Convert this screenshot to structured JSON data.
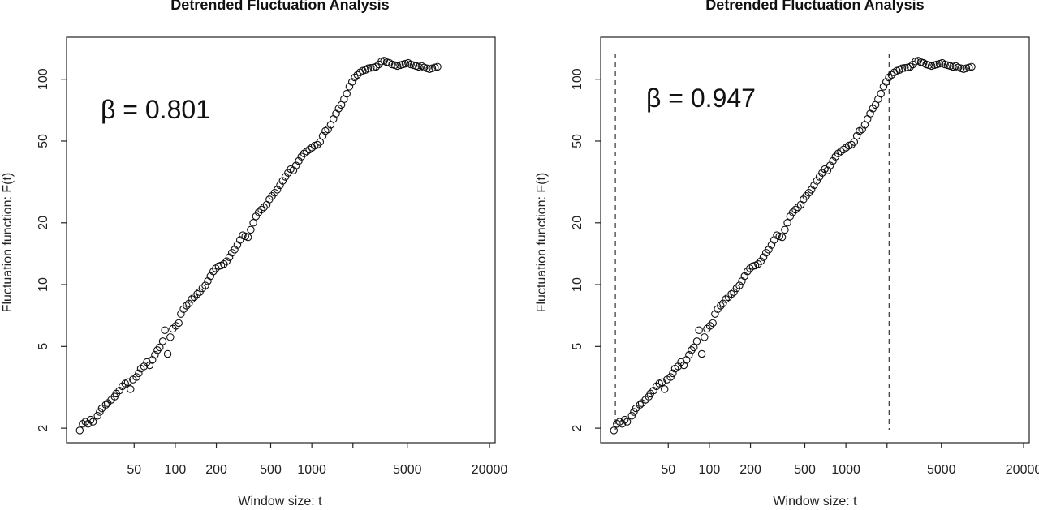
{
  "chart_data": [
    {
      "type": "scatter",
      "title": "Detrended Fluctuation Analysis",
      "xlabel": "Window size: t",
      "ylabel": "Fluctuation function: F(t)",
      "xscale": "log",
      "yscale": "log",
      "xlim": [
        16,
        22000
      ],
      "ylim": [
        1.7,
        160
      ],
      "xticks": [
        50,
        100,
        200,
        500,
        1000,
        5000,
        20000
      ],
      "xtick_labels": [
        "50",
        "100",
        "200",
        "500",
        "1000",
        "5000",
        "20000"
      ],
      "minor_xticks": [
        2000
      ],
      "yticks": [
        2,
        5,
        10,
        20,
        50,
        100
      ],
      "ytick_labels": [
        "2",
        "5",
        "10",
        "20",
        "50",
        "100"
      ],
      "annotation": "β = 0.801",
      "vlines": [],
      "x": [
        20,
        21,
        22,
        23,
        24,
        25,
        27,
        28,
        29,
        31,
        32,
        34,
        36,
        37,
        39,
        41,
        43,
        45,
        47,
        49,
        52,
        54,
        56,
        59,
        62,
        65,
        68,
        71,
        74,
        77,
        81,
        84,
        88,
        92,
        96,
        101,
        106,
        110,
        115,
        121,
        126,
        132,
        138,
        145,
        151,
        158,
        166,
        173,
        181,
        190,
        198,
        208,
        217,
        227,
        238,
        249,
        260,
        272,
        285,
        298,
        312,
        326,
        341,
        357,
        373,
        390,
        408,
        427,
        446,
        467,
        489,
        511,
        535,
        559,
        585,
        612,
        640,
        670,
        700,
        733,
        766,
        802,
        839,
        877,
        918,
        960,
        1004,
        1050,
        1098,
        1149,
        1202,
        1257,
        1315,
        1375,
        1439,
        1505,
        1574,
        1647,
        1722,
        1802,
        1884,
        1971,
        2062,
        2157,
        2256,
        2360,
        2469,
        2582,
        2701,
        2826,
        2956,
        3092,
        3234,
        3383,
        3539,
        3702,
        3872,
        4051,
        4237,
        4432,
        4636,
        4850,
        5073,
        5307,
        5551,
        5807,
        6074,
        6354,
        6647,
        6953,
        7273,
        7608,
        7958,
        8325
      ],
      "y": [
        1.95,
        2.1,
        2.15,
        2.1,
        2.2,
        2.15,
        2.3,
        2.4,
        2.5,
        2.6,
        2.65,
        2.75,
        2.85,
        2.95,
        3.05,
        3.2,
        3.3,
        3.35,
        3.1,
        3.45,
        3.55,
        3.7,
        3.9,
        4.0,
        4.2,
        4.05,
        4.3,
        4.55,
        4.8,
        4.95,
        5.3,
        6.0,
        4.6,
        5.55,
        6.1,
        6.3,
        6.5,
        7.2,
        7.6,
        7.9,
        8.1,
        8.5,
        8.7,
        9.0,
        9.2,
        9.6,
        9.9,
        10.4,
        11.0,
        11.6,
        12.0,
        12.3,
        12.4,
        12.6,
        13.0,
        13.6,
        14.3,
        14.8,
        15.6,
        16.5,
        17.4,
        17.2,
        17.0,
        18.5,
        20.0,
        21.5,
        22.5,
        23.2,
        23.8,
        24.5,
        26.0,
        27.0,
        28.0,
        29.0,
        30.5,
        32.0,
        33.5,
        35.0,
        36.5,
        36.0,
        38.0,
        40.0,
        42.0,
        43.5,
        44.5,
        45.5,
        46.5,
        47.5,
        48.0,
        49.5,
        53.0,
        56.0,
        57.0,
        60.0,
        64.0,
        68.0,
        72.0,
        75.0,
        80.0,
        85.0,
        92.0,
        97.0,
        102.0,
        105.0,
        108.0,
        110.0,
        111.0,
        113.0,
        113.5,
        114.0,
        115.0,
        118.0,
        122.0,
        123.0,
        121.0,
        120.0,
        118.0,
        117.0,
        116.0,
        117.0,
        118.0,
        119.0,
        120.0,
        118.0,
        117.0,
        116.0,
        115.0,
        116.0,
        114.0,
        113.0,
        112.0,
        113.0,
        114.0,
        115.0
      ]
    },
    {
      "type": "scatter",
      "title": "Detrended Fluctuation Analysis",
      "xlabel": "Window size: t",
      "ylabel": "Fluctuation function: F(t)",
      "xscale": "log",
      "yscale": "log",
      "xlim": [
        16,
        22000
      ],
      "ylim": [
        1.7,
        160
      ],
      "xticks": [
        50,
        100,
        200,
        500,
        1000,
        5000,
        20000
      ],
      "xtick_labels": [
        "50",
        "100",
        "200",
        "500",
        "1000",
        "5000",
        "20000"
      ],
      "minor_xticks": [
        2000
      ],
      "yticks": [
        2,
        5,
        10,
        20,
        50,
        100
      ],
      "ytick_labels": [
        "2",
        "5",
        "10",
        "20",
        "50",
        "100"
      ],
      "annotation": "β = 0.947",
      "vlines": [
        20.5,
        2070
      ],
      "x": [
        20,
        21,
        22,
        23,
        24,
        25,
        27,
        28,
        29,
        31,
        32,
        34,
        36,
        37,
        39,
        41,
        43,
        45,
        47,
        49,
        52,
        54,
        56,
        59,
        62,
        65,
        68,
        71,
        74,
        77,
        81,
        84,
        88,
        92,
        96,
        101,
        106,
        110,
        115,
        121,
        126,
        132,
        138,
        145,
        151,
        158,
        166,
        173,
        181,
        190,
        198,
        208,
        217,
        227,
        238,
        249,
        260,
        272,
        285,
        298,
        312,
        326,
        341,
        357,
        373,
        390,
        408,
        427,
        446,
        467,
        489,
        511,
        535,
        559,
        585,
        612,
        640,
        670,
        700,
        733,
        766,
        802,
        839,
        877,
        918,
        960,
        1004,
        1050,
        1098,
        1149,
        1202,
        1257,
        1315,
        1375,
        1439,
        1505,
        1574,
        1647,
        1722,
        1802,
        1884,
        1971,
        2062,
        2157,
        2256,
        2360,
        2469,
        2582,
        2701,
        2826,
        2956,
        3092,
        3234,
        3383,
        3539,
        3702,
        3872,
        4051,
        4237,
        4432,
        4636,
        4850,
        5073,
        5307,
        5551,
        5807,
        6074,
        6354,
        6647,
        6953,
        7273,
        7608,
        7958,
        8325
      ],
      "y": [
        1.95,
        2.1,
        2.15,
        2.1,
        2.2,
        2.15,
        2.3,
        2.4,
        2.5,
        2.6,
        2.65,
        2.75,
        2.85,
        2.95,
        3.05,
        3.2,
        3.3,
        3.35,
        3.1,
        3.45,
        3.55,
        3.7,
        3.9,
        4.0,
        4.2,
        4.05,
        4.3,
        4.55,
        4.8,
        4.95,
        5.3,
        6.0,
        4.6,
        5.55,
        6.1,
        6.3,
        6.5,
        7.2,
        7.6,
        7.9,
        8.1,
        8.5,
        8.7,
        9.0,
        9.2,
        9.6,
        9.9,
        10.4,
        11.0,
        11.6,
        12.0,
        12.3,
        12.4,
        12.6,
        13.0,
        13.6,
        14.3,
        14.8,
        15.6,
        16.5,
        17.4,
        17.2,
        17.0,
        18.5,
        20.0,
        21.5,
        22.5,
        23.2,
        23.8,
        24.5,
        26.0,
        27.0,
        28.0,
        29.0,
        30.5,
        32.0,
        33.5,
        35.0,
        36.5,
        36.0,
        38.0,
        40.0,
        42.0,
        43.5,
        44.5,
        45.5,
        46.5,
        47.5,
        48.0,
        49.5,
        53.0,
        56.0,
        57.0,
        60.0,
        64.0,
        68.0,
        72.0,
        75.0,
        80.0,
        85.0,
        92.0,
        97.0,
        102.0,
        105.0,
        108.0,
        110.0,
        111.0,
        113.0,
        113.5,
        114.0,
        115.0,
        118.0,
        122.0,
        123.0,
        121.0,
        120.0,
        118.0,
        117.0,
        116.0,
        117.0,
        118.0,
        119.0,
        120.0,
        118.0,
        117.0,
        116.0,
        115.0,
        116.0,
        114.0,
        113.0,
        112.0,
        113.0,
        114.0,
        115.0
      ]
    }
  ]
}
